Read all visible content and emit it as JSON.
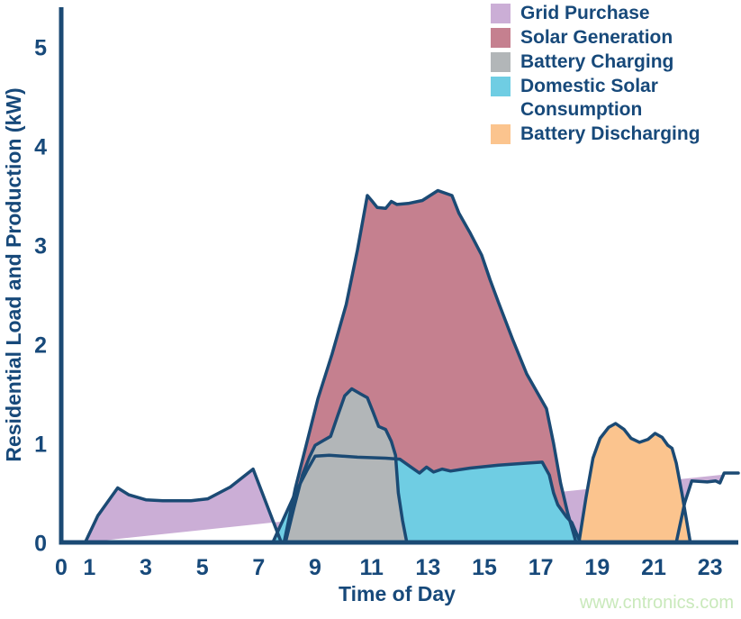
{
  "axes": {
    "x": {
      "label": "Time of Day",
      "ticks": [
        0,
        1,
        3,
        5,
        7,
        9,
        11,
        13,
        15,
        17,
        19,
        21,
        23
      ],
      "range": [
        0,
        24
      ]
    },
    "y": {
      "label": "Residential Load and Production (kW)",
      "ticks": [
        0,
        1,
        2,
        3,
        4,
        5
      ],
      "range": [
        0,
        5.5
      ]
    }
  },
  "watermark": "www.cntronics.com",
  "colors": {
    "axis": "#1b4a74",
    "text": "#17497a",
    "outline": "#1b4a74",
    "watermark": "#c9e9bb",
    "background": "#ffffff"
  },
  "chart_data": {
    "type": "area",
    "title": "",
    "xlabel": "Time of Day",
    "ylabel": "Residential Load and Production (kW)",
    "x_unit": "hour of day (0-24)",
    "y_unit": "kW",
    "xlim": [
      0,
      24
    ],
    "ylim": [
      0,
      5.5
    ],
    "grid": false,
    "legend_position": "top-right",
    "series": [
      {
        "name": "Grid Purchase",
        "color": "#cbaed6",
        "points": [
          [
            0.85,
            0
          ],
          [
            1.3,
            0.27
          ],
          [
            2.0,
            0.55
          ],
          [
            2.4,
            0.48
          ],
          [
            3.0,
            0.43
          ],
          [
            3.6,
            0.42
          ],
          [
            4.6,
            0.42
          ],
          [
            5.2,
            0.44
          ],
          [
            6.0,
            0.56
          ],
          [
            6.8,
            0.74
          ],
          [
            7.8,
            0
          ],
          [
            21.8,
            0
          ],
          [
            22.1,
            0.4
          ],
          [
            22.35,
            0.62
          ],
          [
            22.9,
            0.61
          ],
          [
            23.2,
            0.62
          ],
          [
            23.35,
            0.6
          ],
          [
            23.5,
            0.7
          ],
          [
            24,
            0.7
          ]
        ]
      },
      {
        "name": "Solar Generation",
        "color": "#c5808f",
        "points": [
          [
            7.9,
            0
          ],
          [
            8.3,
            0.55
          ],
          [
            8.7,
            1.0
          ],
          [
            9.1,
            1.45
          ],
          [
            9.6,
            1.9
          ],
          [
            10.1,
            2.4
          ],
          [
            10.5,
            2.95
          ],
          [
            10.85,
            3.5
          ],
          [
            11.0,
            3.45
          ],
          [
            11.2,
            3.38
          ],
          [
            11.5,
            3.37
          ],
          [
            11.7,
            3.44
          ],
          [
            11.9,
            3.41
          ],
          [
            12.3,
            3.42
          ],
          [
            12.8,
            3.45
          ],
          [
            13.35,
            3.55
          ],
          [
            13.85,
            3.5
          ],
          [
            14.1,
            3.32
          ],
          [
            14.5,
            3.12
          ],
          [
            14.9,
            2.9
          ],
          [
            15.2,
            2.65
          ],
          [
            15.5,
            2.42
          ],
          [
            16.0,
            2.05
          ],
          [
            16.5,
            1.7
          ],
          [
            16.9,
            1.5
          ],
          [
            17.2,
            1.35
          ],
          [
            17.45,
            1.0
          ],
          [
            17.7,
            0.6
          ],
          [
            17.95,
            0.3
          ],
          [
            18.25,
            0
          ]
        ]
      },
      {
        "name": "Battery Charging",
        "color": "#b2b6b8",
        "points": [
          [
            7.95,
            0
          ],
          [
            8.25,
            0.35
          ],
          [
            8.55,
            0.68
          ],
          [
            8.8,
            0.86
          ],
          [
            9.0,
            0.98
          ],
          [
            9.3,
            1.03
          ],
          [
            9.55,
            1.07
          ],
          [
            9.8,
            1.28
          ],
          [
            10.05,
            1.48
          ],
          [
            10.3,
            1.55
          ],
          [
            10.6,
            1.5
          ],
          [
            10.85,
            1.46
          ],
          [
            11.05,
            1.32
          ],
          [
            11.25,
            1.17
          ],
          [
            11.5,
            1.14
          ],
          [
            11.7,
            1.02
          ],
          [
            11.85,
            0.88
          ],
          [
            11.95,
            0.5
          ],
          [
            12.1,
            0.22
          ],
          [
            12.25,
            0
          ]
        ]
      },
      {
        "name": "Domestic Solar Consumption",
        "color": "#6fcde3",
        "points": [
          [
            7.5,
            0
          ],
          [
            7.9,
            0.25
          ],
          [
            8.3,
            0.5
          ],
          [
            8.7,
            0.72
          ],
          [
            9.0,
            0.87
          ],
          [
            9.5,
            0.88
          ],
          [
            10.5,
            0.86
          ],
          [
            11.5,
            0.85
          ],
          [
            12.0,
            0.84
          ],
          [
            12.4,
            0.76
          ],
          [
            12.7,
            0.7
          ],
          [
            12.95,
            0.76
          ],
          [
            13.2,
            0.71
          ],
          [
            13.5,
            0.74
          ],
          [
            13.8,
            0.72
          ],
          [
            14.5,
            0.75
          ],
          [
            15.5,
            0.78
          ],
          [
            16.5,
            0.8
          ],
          [
            17.05,
            0.81
          ],
          [
            17.3,
            0.68
          ],
          [
            17.45,
            0.5
          ],
          [
            17.6,
            0.38
          ],
          [
            17.9,
            0.26
          ],
          [
            18.1,
            0.2
          ],
          [
            18.4,
            0
          ]
        ]
      },
      {
        "name": "Battery Discharging",
        "color": "#fbc48e",
        "points": [
          [
            18.35,
            0
          ],
          [
            18.6,
            0.45
          ],
          [
            18.85,
            0.85
          ],
          [
            19.1,
            1.05
          ],
          [
            19.4,
            1.16
          ],
          [
            19.65,
            1.2
          ],
          [
            19.95,
            1.14
          ],
          [
            20.2,
            1.05
          ],
          [
            20.5,
            1.01
          ],
          [
            20.8,
            1.04
          ],
          [
            21.05,
            1.1
          ],
          [
            21.3,
            1.06
          ],
          [
            21.5,
            0.98
          ],
          [
            21.65,
            0.95
          ],
          [
            21.8,
            0.8
          ],
          [
            22.0,
            0.5
          ],
          [
            22.15,
            0.25
          ],
          [
            22.3,
            0
          ]
        ]
      }
    ]
  }
}
